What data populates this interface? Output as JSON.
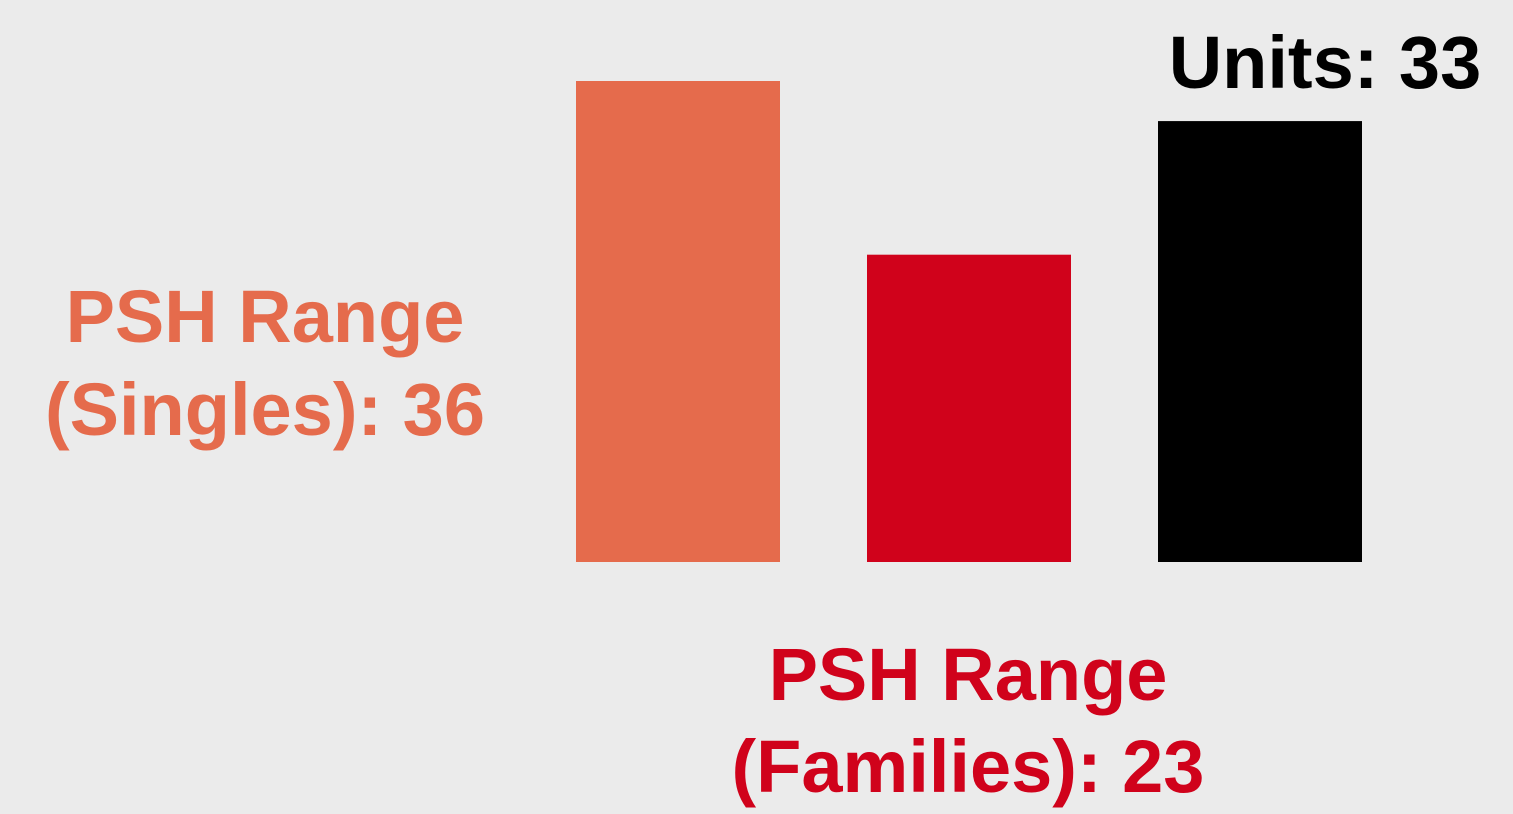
{
  "chart_data": {
    "type": "bar",
    "values": [
      36,
      23,
      33
    ],
    "value_labels": [
      "PSH Range (Singles): 36",
      "PSH Range (Families): 23",
      "Units: 33"
    ],
    "colors": [
      "#e56b4c",
      "#d0021b",
      "#000000"
    ]
  }
}
